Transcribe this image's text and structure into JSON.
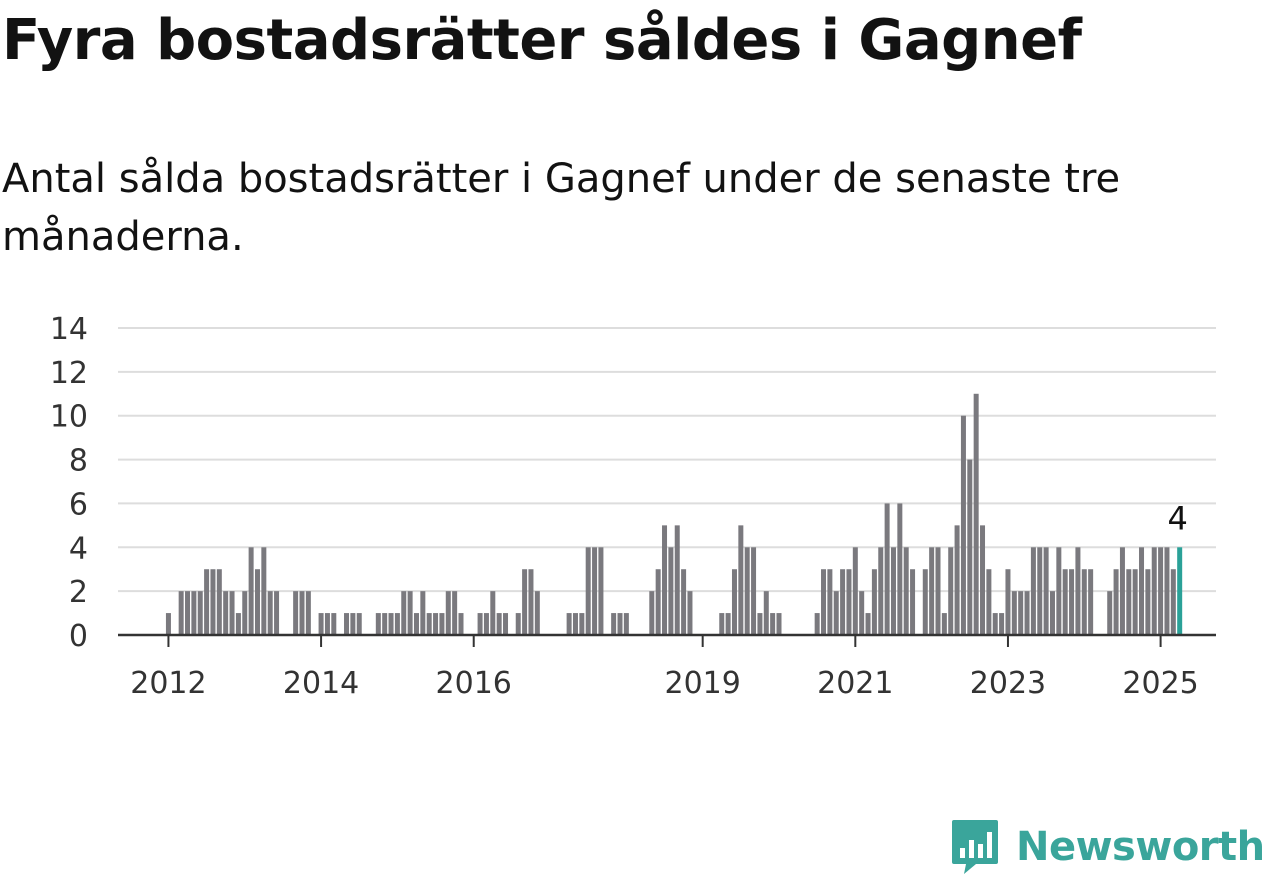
{
  "title": "Fyra bostadsrätter såldes i Gagnef",
  "subtitle": "Antal sålda bostadsrätter i Gagnef under de senaste tre månaderna.",
  "brand": "Newsworthy",
  "colors": {
    "bar": "#7a797e",
    "highlight": "#2aa198",
    "grid": "#dddddd",
    "axis": "#333333",
    "brand": "#3aa59b"
  },
  "chart_data": {
    "type": "bar",
    "title": "Fyra bostadsrätter såldes i Gagnef",
    "subtitle": "Antal sålda bostadsrätter i Gagnef under de senaste tre månaderna.",
    "xlabel": "",
    "ylabel": "",
    "ylim": [
      0,
      14
    ],
    "yticks": [
      0,
      2,
      4,
      6,
      8,
      10,
      12,
      14
    ],
    "grid": true,
    "x_ticks": [
      "2012",
      "2014",
      "2016",
      "2019",
      "2021",
      "2023",
      "2025"
    ],
    "x_tick_bar_index": [
      4,
      28,
      52,
      88,
      112,
      136,
      160
    ],
    "highlight_label": "4",
    "values": [
      0,
      0,
      0,
      0,
      1,
      0,
      2,
      2,
      2,
      2,
      3,
      3,
      3,
      2,
      2,
      1,
      2,
      4,
      3,
      4,
      2,
      2,
      0,
      0,
      2,
      2,
      2,
      0,
      1,
      1,
      1,
      0,
      1,
      1,
      1,
      0,
      0,
      1,
      1,
      1,
      1,
      2,
      2,
      1,
      2,
      1,
      1,
      1,
      2,
      2,
      1,
      0,
      0,
      1,
      1,
      2,
      1,
      1,
      0,
      1,
      3,
      3,
      2,
      0,
      0,
      0,
      0,
      1,
      1,
      1,
      4,
      4,
      4,
      0,
      1,
      1,
      1,
      0,
      0,
      0,
      2,
      3,
      5,
      4,
      5,
      3,
      2,
      0,
      0,
      0,
      0,
      1,
      1,
      3,
      5,
      4,
      4,
      1,
      2,
      1,
      1,
      0,
      0,
      0,
      0,
      0,
      1,
      3,
      3,
      2,
      3,
      3,
      4,
      2,
      1,
      3,
      4,
      6,
      4,
      6,
      4,
      3,
      0,
      3,
      4,
      4,
      1,
      4,
      5,
      10,
      8,
      11,
      5,
      3,
      1,
      1,
      3,
      2,
      2,
      2,
      4,
      4,
      4,
      2,
      4,
      3,
      3,
      4,
      3,
      3,
      0,
      0,
      2,
      3,
      4,
      3,
      3,
      4,
      3,
      4,
      4,
      4,
      3,
      4
    ]
  }
}
